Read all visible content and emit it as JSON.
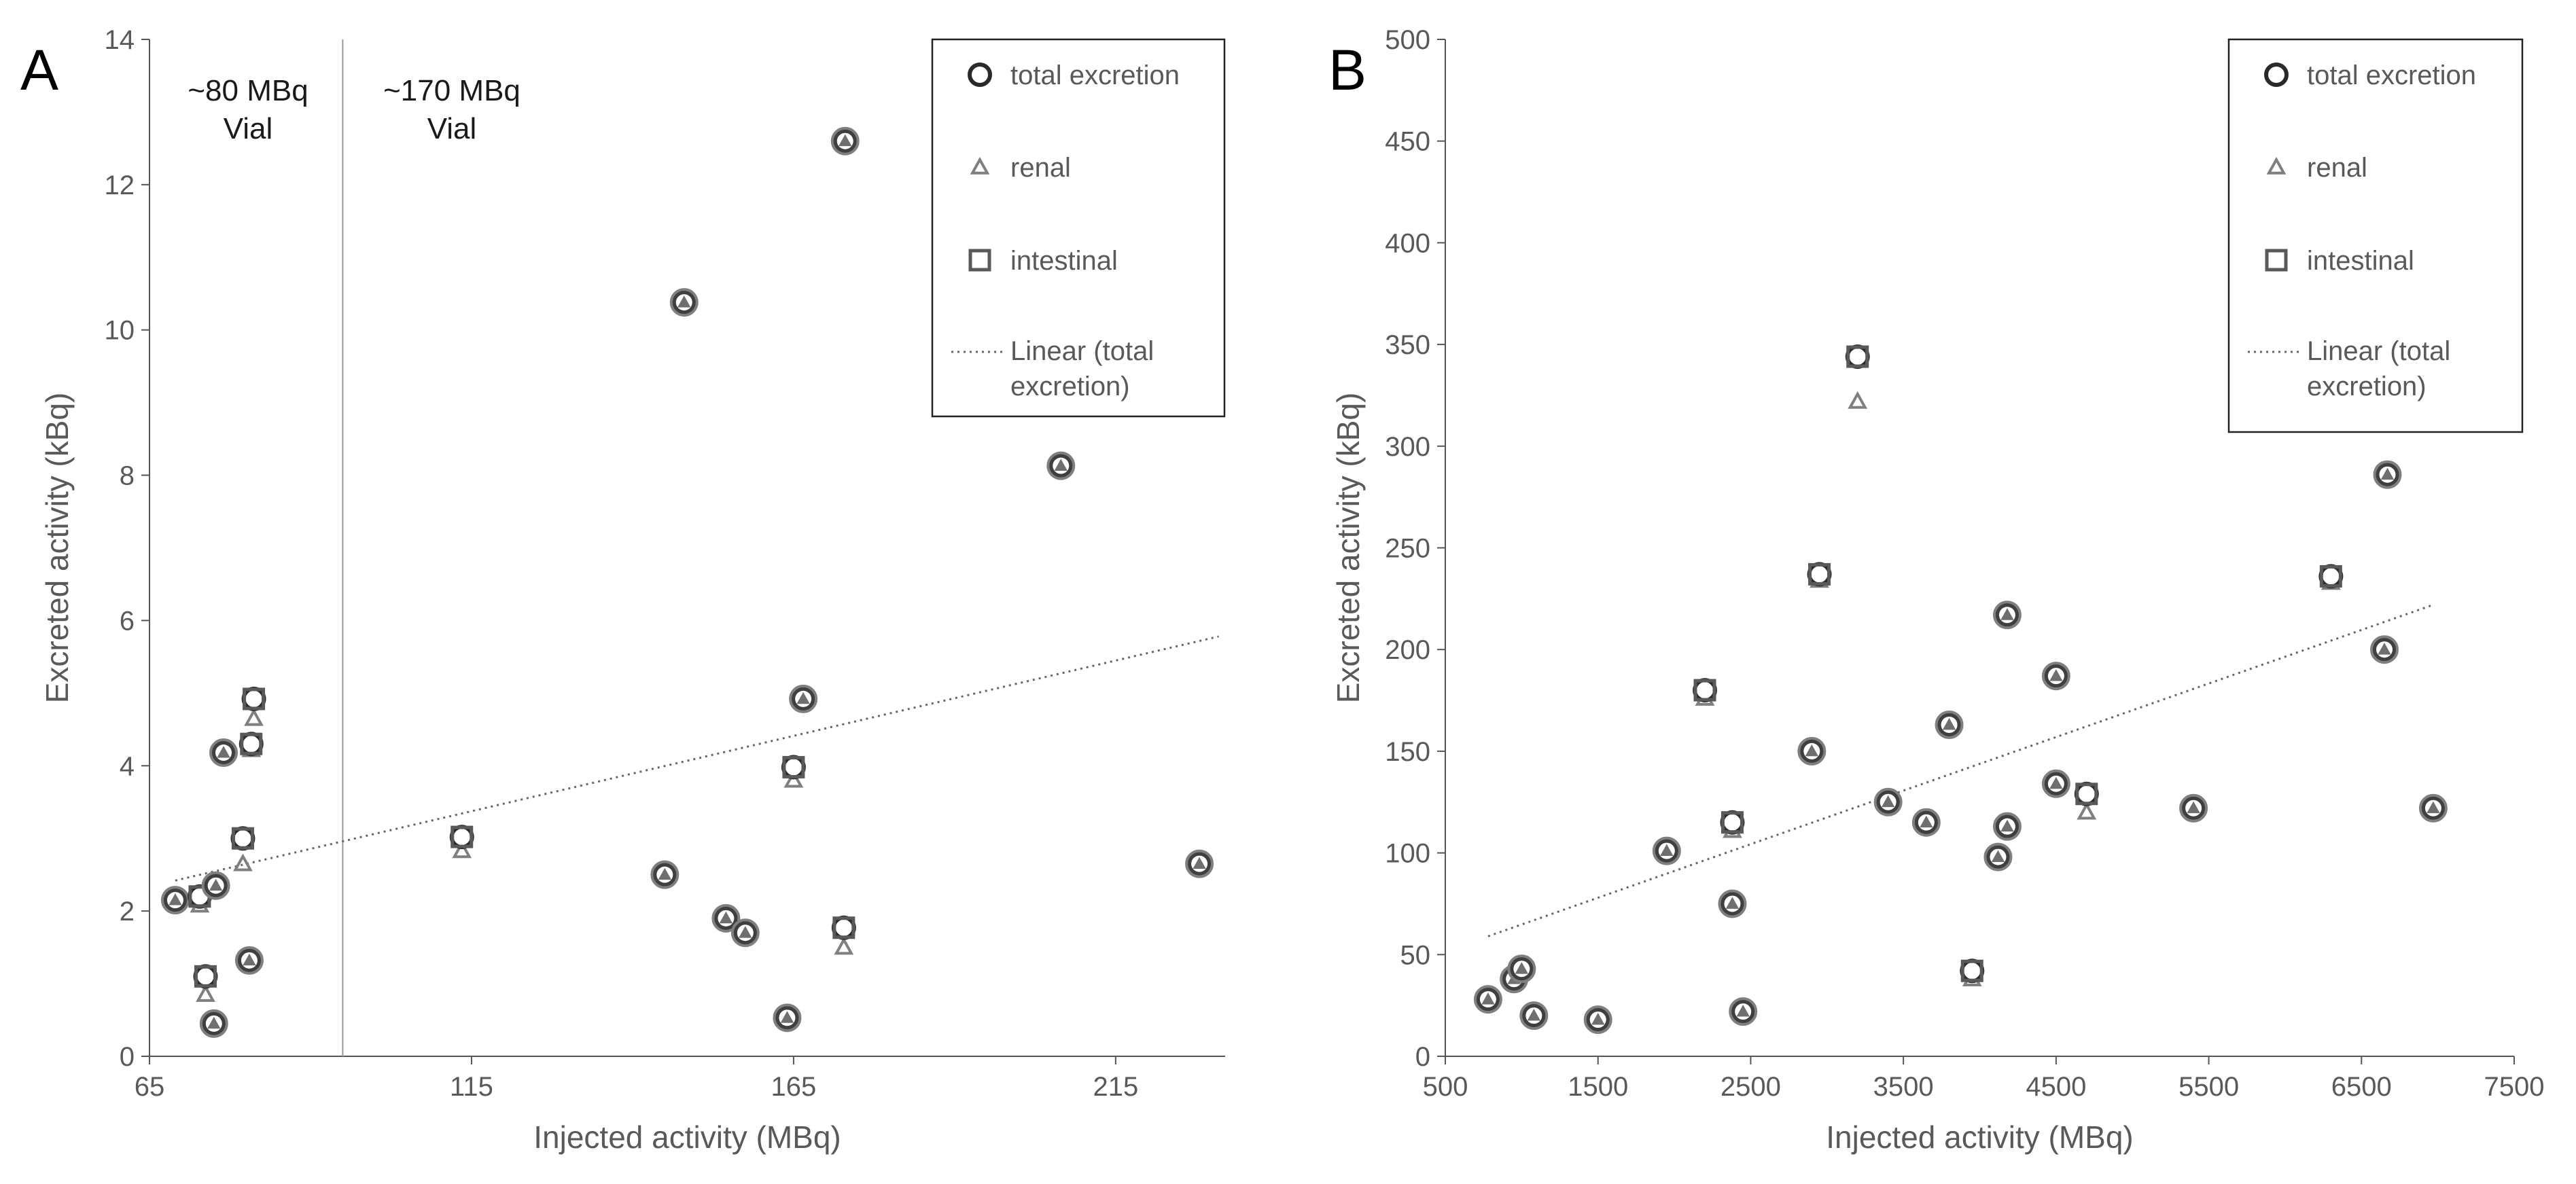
{
  "chart_data": [
    {
      "type": "scatter",
      "panel_label": "A",
      "xlabel": "Injected activity (MBq)",
      "ylabel": "Excreted activity (kBq)",
      "xlim": [
        65,
        232
      ],
      "ylim": [
        0,
        14
      ],
      "xticks": [
        65,
        115,
        165,
        215
      ],
      "xtick_labels": [
        "65",
        "115",
        "165",
        "215"
      ],
      "yticks": [
        0,
        2,
        4,
        6,
        8,
        10,
        12,
        14
      ],
      "ytick_labels": [
        "0",
        "2",
        "4",
        "6",
        "8",
        "10",
        "12",
        "14"
      ],
      "divider_x": 95,
      "annotations": [
        {
          "lines": [
            "~80 MBq",
            "Vial"
          ]
        },
        {
          "lines": [
            "~170 MBq",
            "Vial"
          ]
        }
      ],
      "legend": [
        {
          "label": "total excretion",
          "marker": "circle"
        },
        {
          "label": "renal",
          "marker": "triangle"
        },
        {
          "label": "intestinal",
          "marker": "square"
        },
        {
          "label": "Linear (total excretion)",
          "lines": [
            "Linear (total",
            "excretion)"
          ],
          "marker": "dotted-line"
        }
      ],
      "trendline": {
        "x": [
          69,
          231
        ],
        "y": [
          2.42,
          5.78
        ]
      },
      "series": [
        {
          "name": "total excretion",
          "marker": "circle",
          "x": [
            69,
            72.8,
            73.7,
            75,
            75.3,
            76.5,
            79.5,
            80.5,
            80.8,
            81.2,
            113.5,
            145,
            148,
            154.5,
            157.5,
            164,
            165,
            166.5,
            172.8,
            173,
            206.5,
            228
          ],
          "y": [
            2.15,
            2.2,
            1.1,
            0.45,
            2.35,
            4.18,
            3.0,
            1.32,
            4.3,
            4.92,
            3.02,
            2.5,
            10.38,
            1.9,
            1.7,
            0.53,
            3.98,
            4.92,
            1.77,
            12.6,
            8.13,
            2.65
          ]
        },
        {
          "name": "renal",
          "marker": "triangle",
          "x": [
            69,
            72.8,
            73.7,
            75,
            75.3,
            76.5,
            79.5,
            80.5,
            80.8,
            81.2,
            113.5,
            145,
            148,
            154.5,
            157.5,
            164,
            165,
            166.5,
            172.8,
            173,
            206.5,
            228
          ],
          "y": [
            2.15,
            2.08,
            0.85,
            0.45,
            2.3,
            4.15,
            2.65,
            1.28,
            4.22,
            4.65,
            2.83,
            2.5,
            10.38,
            1.88,
            1.7,
            0.53,
            3.8,
            4.9,
            1.5,
            12.6,
            8.13,
            2.65
          ]
        },
        {
          "name": "intestinal",
          "marker": "square",
          "x": [
            69,
            72.8,
            73.7,
            75,
            75.3,
            76.5,
            79.5,
            80.5,
            80.8,
            81.2,
            113.5,
            145,
            148,
            154.5,
            157.5,
            164,
            165,
            166.5,
            172.8,
            173,
            206.5,
            228
          ],
          "y": [
            2.15,
            2.2,
            1.1,
            0.45,
            2.35,
            4.18,
            3.0,
            1.32,
            4.3,
            4.92,
            3.02,
            2.5,
            10.38,
            1.9,
            1.7,
            0.53,
            3.98,
            4.92,
            1.77,
            12.6,
            8.13,
            2.65
          ]
        }
      ]
    },
    {
      "type": "scatter",
      "panel_label": "B",
      "xlabel": "Injected activity (MBq)",
      "ylabel": "Excreted activity (kBq)",
      "xlim": [
        500,
        7500
      ],
      "ylim": [
        0,
        500
      ],
      "xticks": [
        500,
        1500,
        2500,
        3500,
        4500,
        5500,
        6500,
        7500
      ],
      "xtick_labels": [
        "500",
        "1500",
        "2500",
        "3500",
        "4500",
        "5500",
        "6500",
        "7500"
      ],
      "yticks": [
        0,
        50,
        100,
        150,
        200,
        250,
        300,
        350,
        400,
        450,
        500
      ],
      "ytick_labels": [
        "0",
        "50",
        "100",
        "150",
        "200",
        "250",
        "300",
        "350",
        "400",
        "450",
        "500"
      ],
      "legend": [
        {
          "label": "total excretion",
          "marker": "circle"
        },
        {
          "label": "renal",
          "marker": "triangle"
        },
        {
          "label": "intestinal",
          "marker": "square"
        },
        {
          "label": "Linear (total excretion)",
          "lines": [
            "Linear (total",
            "excretion)"
          ],
          "marker": "dotted-line"
        }
      ],
      "trendline": {
        "x": [
          780,
          6970
        ],
        "y": [
          59,
          222
        ]
      },
      "series": [
        {
          "name": "total excretion",
          "marker": "circle",
          "x": [
            780,
            950,
            1000,
            1080,
            1500,
            1950,
            2200,
            2380,
            2380,
            2450,
            2900,
            2950,
            3200,
            3400,
            3650,
            3800,
            3950,
            4120,
            4180,
            4180,
            4500,
            4500,
            4700,
            5400,
            6300,
            6650,
            6670,
            6970
          ],
          "y": [
            28,
            38,
            43,
            20,
            18,
            101,
            180,
            115,
            75,
            22,
            150,
            237,
            344,
            125,
            115,
            163,
            42,
            98,
            217,
            113,
            187,
            134,
            129,
            122,
            236,
            200,
            286,
            122
          ]
        },
        {
          "name": "renal",
          "marker": "triangle",
          "x": [
            780,
            950,
            1000,
            1080,
            1500,
            1950,
            2200,
            2380,
            2380,
            2450,
            2900,
            2950,
            3200,
            3400,
            3650,
            3800,
            3950,
            4120,
            4180,
            4180,
            4500,
            4500,
            4700,
            5400,
            6300,
            6650,
            6670,
            6970
          ],
          "y": [
            28,
            38,
            42,
            20,
            18,
            101,
            176,
            111,
            75,
            22,
            150,
            234,
            322,
            125,
            115,
            163,
            38,
            98,
            217,
            113,
            187,
            134,
            120,
            120,
            233,
            200,
            286,
            122
          ]
        },
        {
          "name": "intestinal",
          "marker": "square",
          "x": [
            780,
            950,
            1000,
            1080,
            1500,
            1950,
            2200,
            2380,
            2380,
            2450,
            2900,
            2950,
            3200,
            3400,
            3650,
            3800,
            3950,
            4120,
            4180,
            4180,
            4500,
            4500,
            4700,
            5400,
            6300,
            6650,
            6670,
            6970
          ],
          "y": [
            28,
            38,
            43,
            20,
            18,
            101,
            180,
            115,
            75,
            22,
            150,
            237,
            344,
            125,
            115,
            163,
            42,
            98,
            217,
            113,
            187,
            134,
            129,
            122,
            236,
            200,
            286,
            122
          ]
        }
      ]
    }
  ]
}
